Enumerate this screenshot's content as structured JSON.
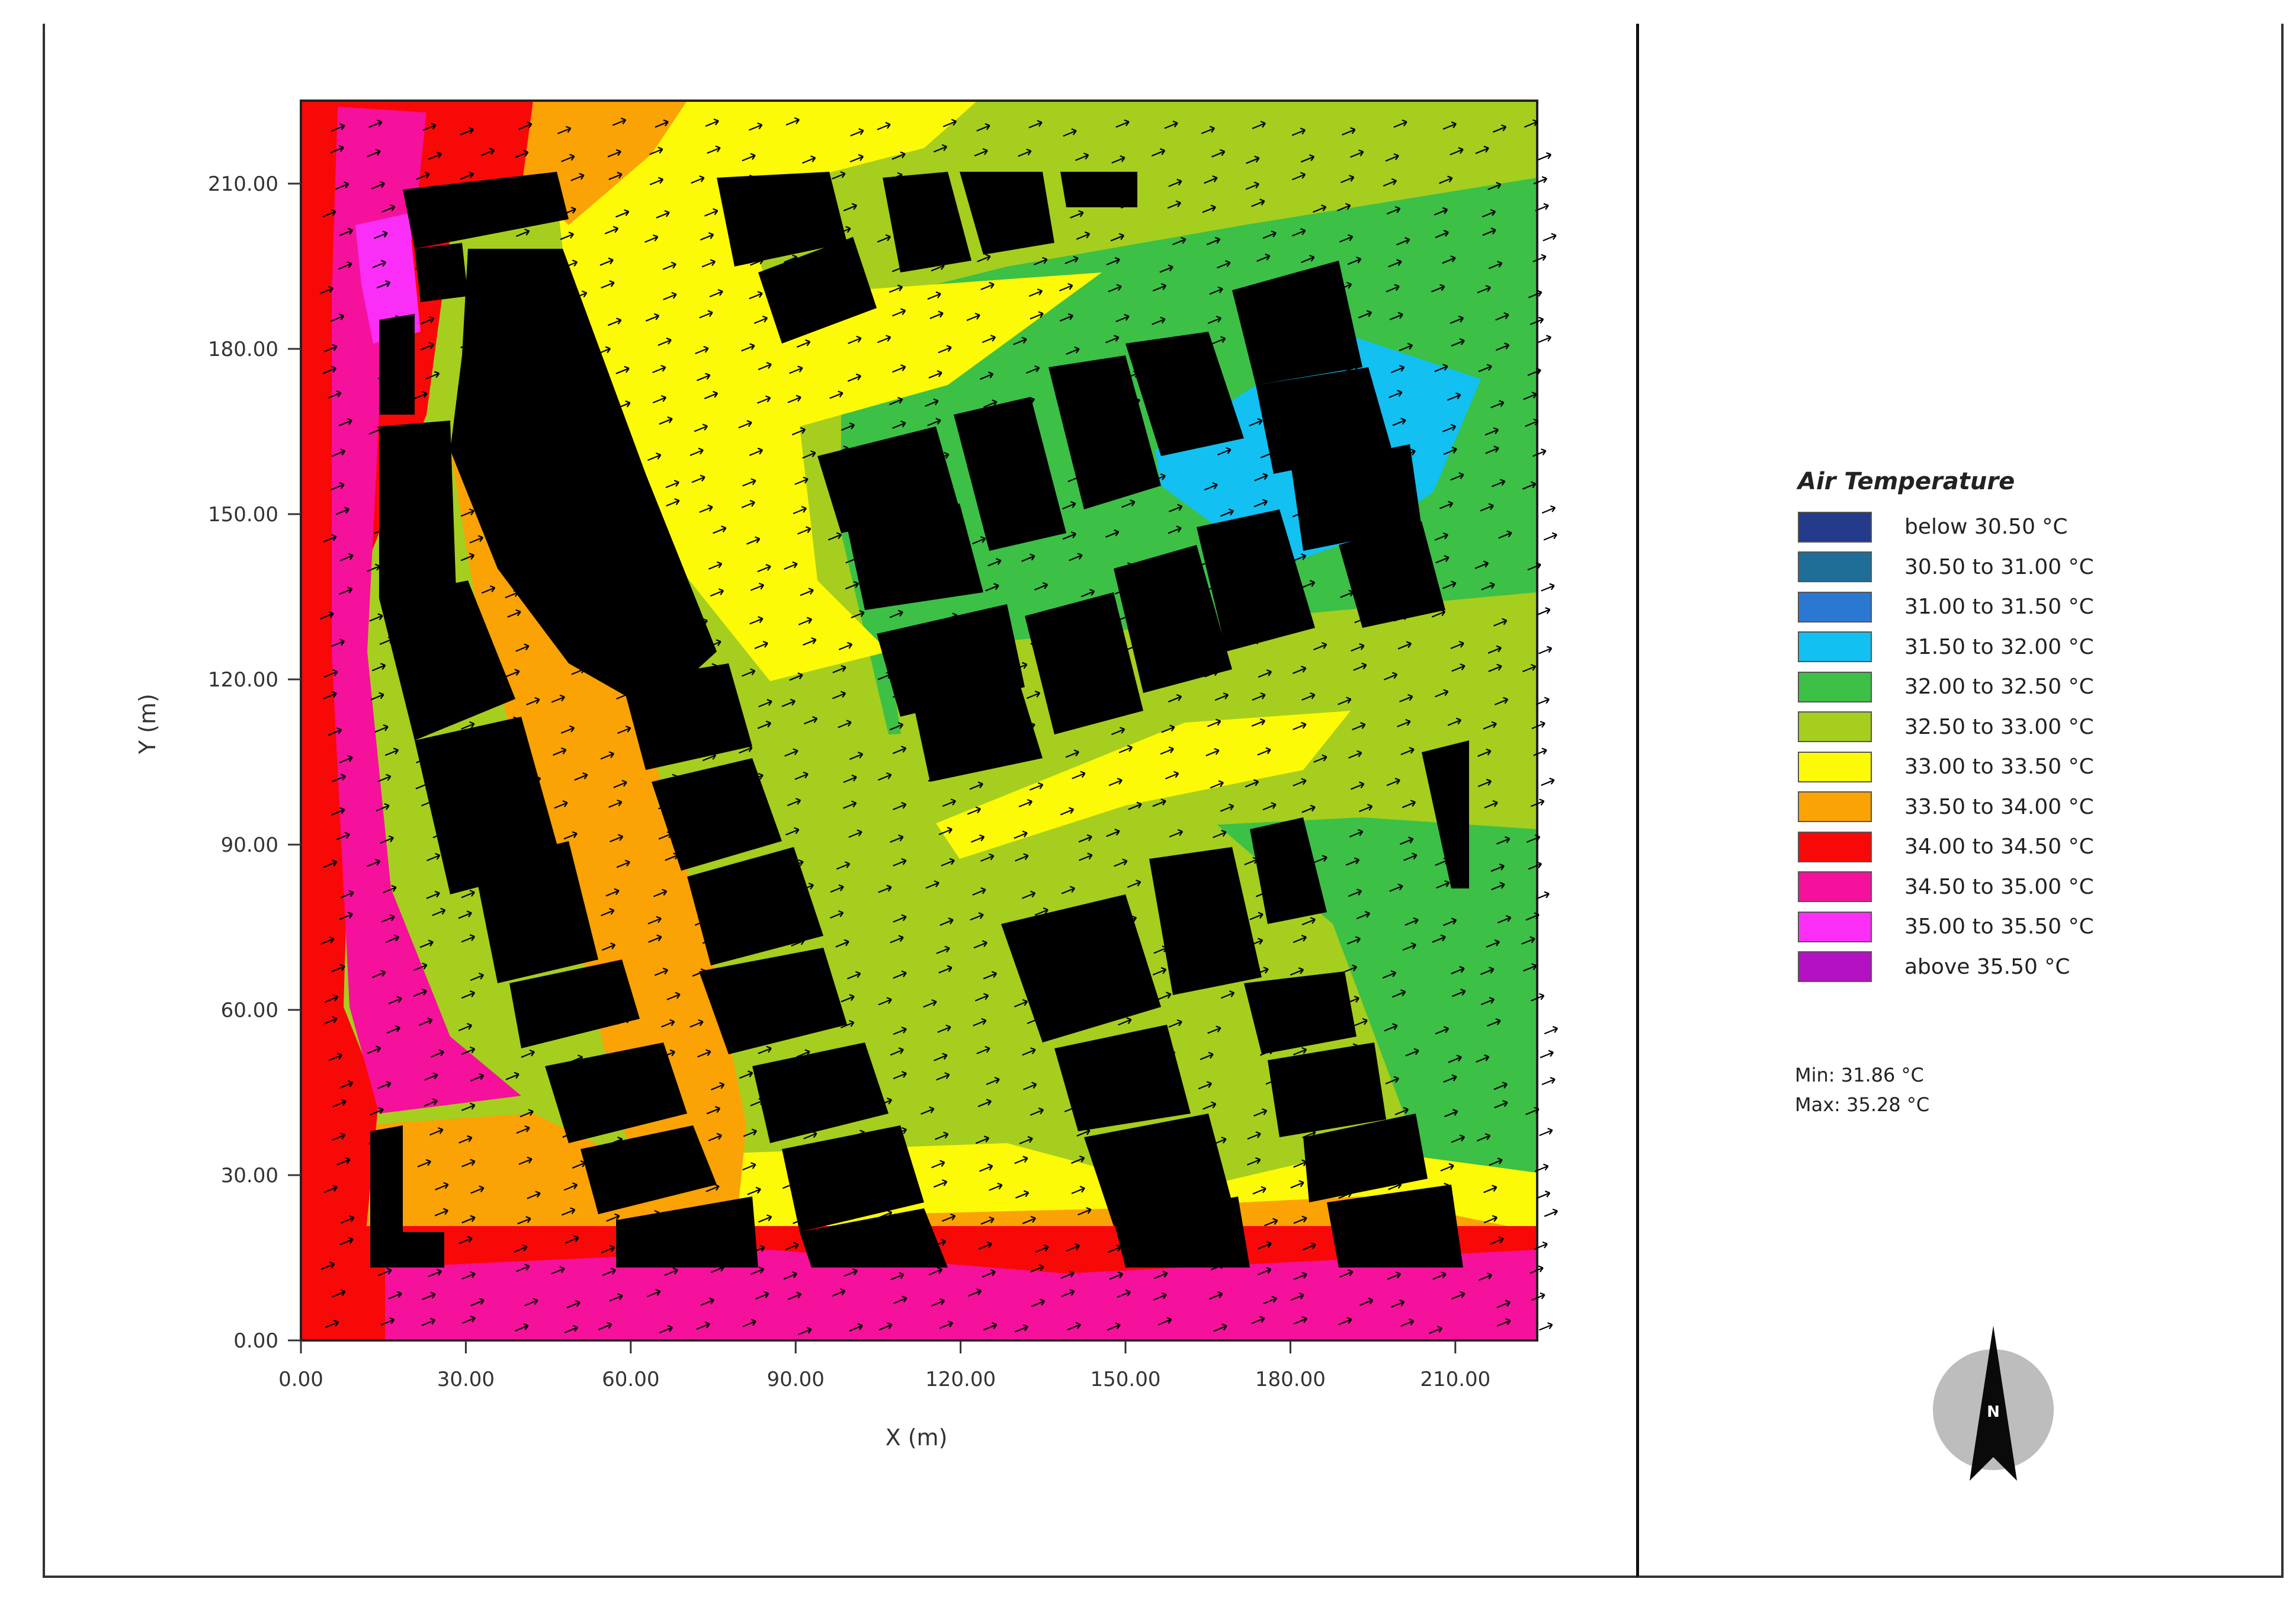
{
  "map": {
    "x_axis_label": "X (m)",
    "y_axis_label": "Y (m)",
    "x_ticks": [
      "0.00",
      "30.00",
      "60.00",
      "90.00",
      "120.00",
      "150.00",
      "180.00",
      "210.00"
    ],
    "y_ticks": [
      "0.00",
      "30.00",
      "60.00",
      "90.00",
      "120.00",
      "150.00",
      "180.00",
      "210.00"
    ],
    "x_range": [
      0,
      225
    ],
    "y_range": [
      0,
      225
    ]
  },
  "legend": {
    "title": "Air Temperature",
    "items": [
      {
        "label": "below 30.50 °C",
        "color": "#243a8a"
      },
      {
        "label": "30.50 to 31.00 °C",
        "color": "#1f6e9a"
      },
      {
        "label": "31.00 to 31.50 °C",
        "color": "#2a78d2"
      },
      {
        "label": "31.50 to 32.00 °C",
        "color": "#12c0f2"
      },
      {
        "label": "32.00 to 32.50 °C",
        "color": "#3cc046"
      },
      {
        "label": "32.50 to 33.00 °C",
        "color": "#a6ce1e"
      },
      {
        "label": "33.00 to 33.50 °C",
        "color": "#fcfa06"
      },
      {
        "label": "33.50 to 34.00 °C",
        "color": "#fba204"
      },
      {
        "label": "34.00 to 34.50 °C",
        "color": "#f90808"
      },
      {
        "label": "34.50 to 35.00 °C",
        "color": "#f5119b"
      },
      {
        "label": "35.00 to 35.50 °C",
        "color": "#fb2ef8"
      },
      {
        "label": "above 35.50 °C",
        "color": "#b410c4"
      }
    ]
  },
  "stats": {
    "min": "Min: 31.86 °C",
    "max": "Max: 35.28 °C"
  },
  "compass": {
    "label": "N",
    "icon": "north-arrow-icon"
  }
}
